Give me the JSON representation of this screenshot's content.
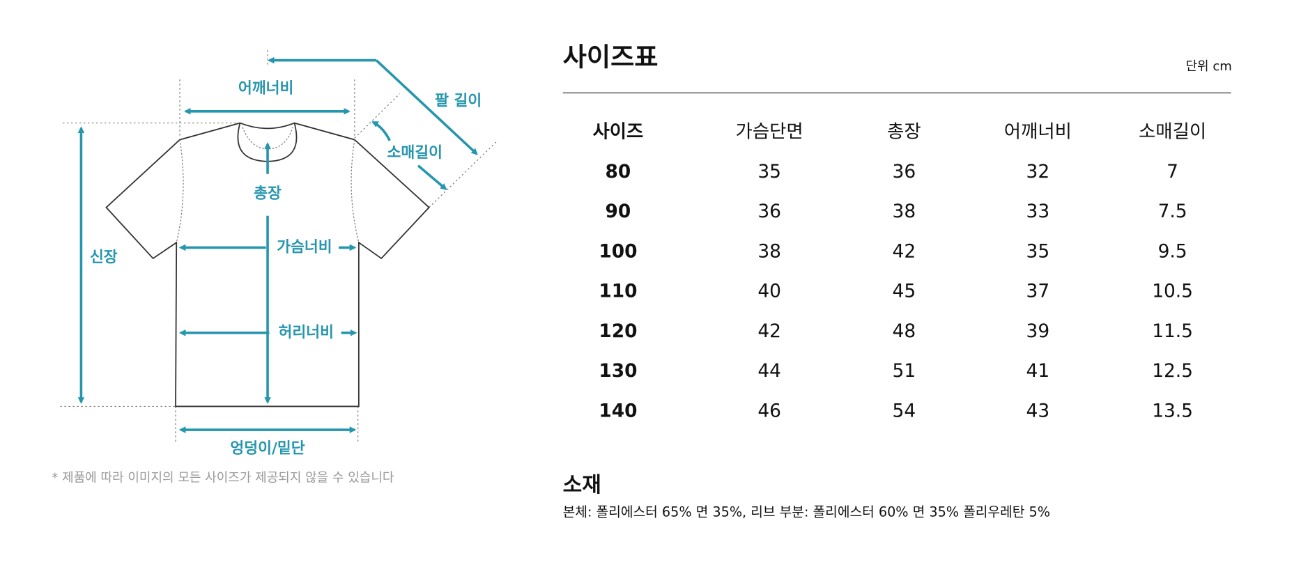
{
  "diagram": {
    "labels": [
      "어깨너비",
      "팔 길이",
      "소매길이",
      "총장",
      "신장",
      "가슴너비",
      "허리너비",
      "엉덩이/밑단"
    ],
    "note": "* 제품에 따라 이미지의 모든 사이즈가 제공되지 않을 수 있습니다"
  },
  "size_chart": {
    "title": "사이즈표",
    "unit": "단위 cm",
    "header": [
      "사이즈",
      "가슴단면",
      "총장",
      "어깨너비",
      "소매길이"
    ],
    "rows": [
      [
        80,
        35,
        36,
        32,
        7
      ],
      [
        90,
        36,
        38,
        33,
        7.5
      ],
      [
        100,
        38,
        42,
        35,
        9.5
      ],
      [
        110,
        40,
        45,
        37,
        10.5
      ],
      [
        120,
        42,
        48,
        39,
        11.5
      ],
      [
        130,
        44,
        51,
        41,
        12.5
      ],
      [
        140,
        46,
        54,
        43,
        13.5
      ]
    ]
  },
  "material": {
    "title": "소재",
    "text": "본체: 폴리에스터 65% 면 35%, 리브 부분: 폴리에스터 60% 면 35% 폴리우레탄 5%"
  }
}
